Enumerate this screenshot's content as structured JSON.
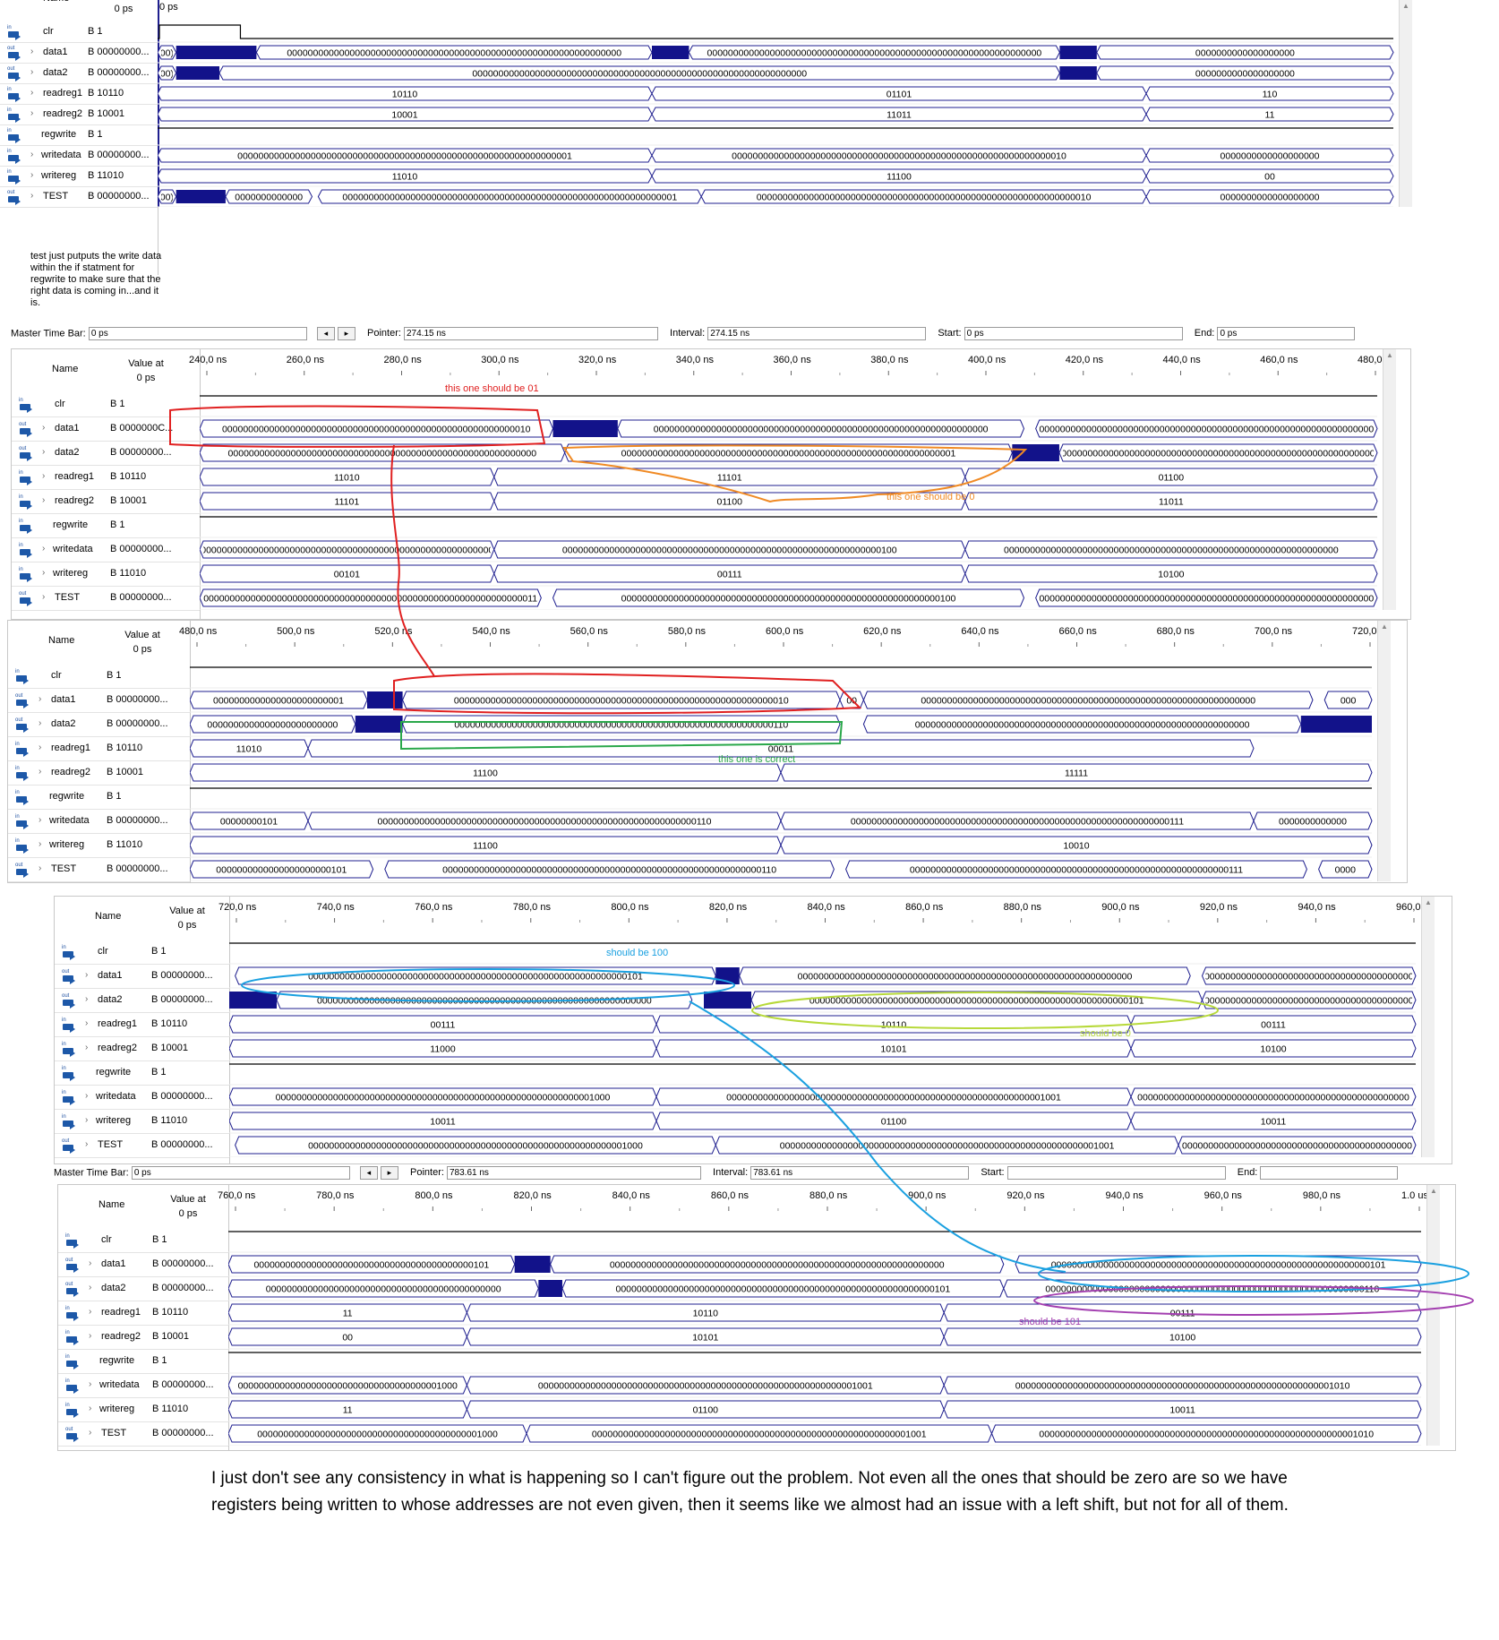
{
  "signals": [
    {
      "name": "clr",
      "icon": "input-pin-icon",
      "expandable": false
    },
    {
      "name": "data1",
      "icon": "output-pin-icon",
      "expandable": true
    },
    {
      "name": "data2",
      "icon": "output-pin-icon",
      "expandable": true
    },
    {
      "name": "readreg1",
      "icon": "input-pin-icon",
      "expandable": true
    },
    {
      "name": "readreg2",
      "icon": "input-pin-icon",
      "expandable": true
    },
    {
      "name": "regwrite",
      "icon": "input-pin-icon",
      "expandable": false
    },
    {
      "name": "writedata",
      "icon": "input-pin-icon",
      "expandable": true
    },
    {
      "name": "writereg",
      "icon": "input-pin-icon",
      "expandable": true
    },
    {
      "name": "TEST",
      "icon": "output-pin-icon",
      "expandable": true
    }
  ],
  "values": [
    "B 1",
    "B 00000000...",
    "B 00000000...",
    "B 10110",
    "B 10001",
    "B 1",
    "B 00000000...",
    "B 11010",
    "B 00000000..."
  ],
  "values_p1": [
    "B 1",
    "B 00000000...",
    "B 00000000...",
    "B 10110",
    "B 10001",
    "B 1",
    "B 00000000...",
    "B 11010",
    "B 00000000..."
  ],
  "values_p2": [
    "B 1",
    "B 0000000C...",
    "B 00000000...",
    "B 10110",
    "B 10001",
    "B 1",
    "B 00000000...",
    "B 11010",
    "B 00000000..."
  ],
  "headers": {
    "name": "Name",
    "value_at": "Value at",
    "zero_ps": "0 ps"
  },
  "panel1": {
    "time_label": "0 ps",
    "note": "test just putputs the write data within the if statment for regwrite to make sure that the right data is coming in...and it is.",
    "rows": {
      "data1": [
        "00)",
        "0000000000000000000000000000000000000000000000000000000000000000",
        "0000000000000000000000000000000000000000000000000000000000000000",
        "0000000000000000000"
      ],
      "data2": [
        "00)",
        "0000000000000000000000000000000000000000000000000000000000000000",
        "0000000000000000000"
      ],
      "readreg1": [
        "10110",
        "01101",
        "110"
      ],
      "readreg2": [
        "10001",
        "11011",
        "11"
      ],
      "writedata": [
        "0000000000000000000000000000000000000000000000000000000000000001",
        "0000000000000000000000000000000000000000000000000000000000000010",
        "0000000000000000000"
      ],
      "writereg": [
        "11010",
        "11100",
        "00"
      ],
      "TEST": [
        "00)",
        "0000000000000",
        "0000000000000000000000000000000000000000000000000000000000000001",
        "0000000000000000000000000000000000000000000000000000000000000010",
        "0000000000000000000"
      ]
    }
  },
  "timebar": {
    "master_time_bar_label": "Master Time Bar:",
    "master_time_bar_value": "0 ps",
    "pointer_label": "Pointer:",
    "interval_label": "Interval:",
    "start_label": "Start:",
    "end_label": "End:",
    "pointer_p2": "274.15 ns",
    "interval_p2": "274.15 ns",
    "start_p2": "0 ps",
    "end_p2": "0 ps",
    "pointer_p5": "783.61 ns",
    "interval_p5": "783.61 ns"
  },
  "panel2": {
    "ticks": [
      "240,0 ns",
      "260,0 ns",
      "280,0 ns",
      "300,0 ns",
      "320,0 ns",
      "340,0 ns",
      "360,0 ns",
      "380,0 ns",
      "400,0 ns",
      "420,0 ns",
      "440,0 ns",
      "460,0 ns",
      "480,0 ns"
    ],
    "rows": {
      "data1": [
        "00000000000000000000000000000000000000000000000000000000010",
        "0000000000000000000000000000000000000000000000000000000000000000",
        "0000000000000000000000000000000000000000000000000000000000000000"
      ],
      "data2": [
        "00000000000000000000000000000000000000000000000000000000000",
        "0000000000000000000000000000000000000000000000000000000000000001",
        "0000000000000000000000000000000000000000000000000000000000000000"
      ],
      "readreg1": [
        "11010",
        "11101",
        "01100"
      ],
      "readreg2": [
        "11101",
        "01100",
        "11011"
      ],
      "writedata": [
        "0000000000000000000000000000000000000000000000000000000000000011",
        "0000000000000000000000000000000000000000000000000000000000000100",
        "0000000000000000000000000000000000000000000000000000000000000000"
      ],
      "writereg": [
        "00101",
        "00111",
        "10100"
      ],
      "TEST": [
        "0000000000000000000000000000000000000000000000000000000000000011",
        "0000000000000000000000000000000000000000000000000000000000000100",
        "0000000000000000000000000000000000000000000000000000000000000000"
      ]
    },
    "annot_red": "this one should be 01",
    "annot_orange": "this one should be 0"
  },
  "panel3": {
    "ticks": [
      "480,0 ns",
      "500,0 ns",
      "520,0 ns",
      "540,0 ns",
      "560,0 ns",
      "580,0 ns",
      "600,0 ns",
      "620,0 ns",
      "640,0 ns",
      "660,0 ns",
      "680,0 ns",
      "700,0 ns",
      "720,0 ns"
    ],
    "rows": {
      "data1": [
        "0000000000000000000000001",
        "0000000000000000000000000000000000000000000000000000000000000010",
        "00",
        "0000000000000000000000000000000000000000000000000000000000000000",
        "000"
      ],
      "data2": [
        "0000000000000000000000000",
        "0000000000000000000000000000000000000000000000000000000000000110",
        "0000000000000000000000000000000000000000000000000000000000000000"
      ],
      "readreg1": [
        "11010",
        "00011"
      ],
      "readreg2": [
        "11100",
        "11111"
      ],
      "writedata": [
        "00000000101",
        "0000000000000000000000000000000000000000000000000000000000000110",
        "0000000000000000000000000000000000000000000000000000000000000111",
        "0000000000000"
      ],
      "writereg": [
        "11100",
        "10010"
      ],
      "TEST": [
        "0000000000000000000000101",
        "0000000000000000000000000000000000000000000000000000000000000110",
        "0000000000000000000000000000000000000000000000000000000000000111",
        "0000"
      ]
    },
    "annot_green": "this one is correct"
  },
  "panel4": {
    "ticks": [
      "720,0 ns",
      "740,0 ns",
      "760,0 ns",
      "780,0 ns",
      "800,0 ns",
      "820,0 ns",
      "840,0 ns",
      "860,0 ns",
      "880,0 ns",
      "900,0 ns",
      "920,0 ns",
      "940,0 ns",
      "960,0"
    ],
    "rows": {
      "data1": [
        "0000000000000000000000000000000000000000000000000000000000000101",
        "0000000000000000000000000000000000000000000000000000000000000000",
        "0000000000000000000000000000000000000000000000000000"
      ],
      "data2": [
        "0000000000000000000000000000000000000000000000000000000000000000",
        "0000000000000000000000000000000000000000000000000000000000000101",
        "0000000000000000000000000000000000000000000000000000"
      ],
      "readreg1": [
        "00111",
        "10110",
        "00111"
      ],
      "readreg2": [
        "11000",
        "10101",
        "10100"
      ],
      "writedata": [
        "0000000000000000000000000000000000000000000000000000000000001000",
        "0000000000000000000000000000000000000000000000000000000000001001",
        "0000000000000000000000000000000000000000000000000000"
      ],
      "writereg": [
        "10011",
        "01100",
        "10011"
      ],
      "TEST": [
        "0000000000000000000000000000000000000000000000000000000000001000",
        "0000000000000000000000000000000000000000000000000000000000001001",
        "0000000000000000000000000000000000000000000000000000"
      ]
    },
    "annot_blue": "should be 100",
    "annot_yellow": "should be 0"
  },
  "panel5": {
    "ticks": [
      "760,0 ns",
      "780,0 ns",
      "800,0 ns",
      "820,0 ns",
      "840,0 ns",
      "860,0 ns",
      "880,0 ns",
      "900,0 ns",
      "920,0 ns",
      "940,0 ns",
      "960,0 ns",
      "980,0 ns",
      "1.0 us"
    ],
    "rows": {
      "data1": [
        "000000000000000000000000000000000000000000101",
        "0000000000000000000000000000000000000000000000000000000000000000",
        "0000000000000000000000000000000000000000000000000000000000000101"
      ],
      "data2": [
        "000000000000000000000000000000000000000000000",
        "0000000000000000000000000000000000000000000000000000000000000101",
        "0000000000000000000000000000000000000000000000000000000000000110"
      ],
      "readreg1": [
        "11",
        "10110",
        "00111"
      ],
      "readreg2": [
        "00",
        "10101",
        "10100"
      ],
      "writedata": [
        "000000000000000000000000000000000000001000",
        "0000000000000000000000000000000000000000000000000000000000001001",
        "0000000000000000000000000000000000000000000000000000000000001010"
      ],
      "writereg": [
        "11",
        "01100",
        "10011"
      ],
      "TEST": [
        "0000000000000000000000000000000000000000001000",
        "0000000000000000000000000000000000000000000000000000000000001001",
        "0000000000000000000000000000000000000000000000000000000000001010"
      ]
    },
    "annot_purple": "should be 101"
  },
  "comment": "I just don't see any consistency in what is happening so I can't figure out the problem. Not even all the ones that should be zero are so we have registers being written to whose addresses are not even given, then it seems like we almost had an issue with a left shift, but not for all of them.",
  "colors": {
    "wave": "#1f1f8f",
    "red": "#e02020",
    "orange": "#f08a24",
    "green": "#2aa84a",
    "blue": "#1aa0e0",
    "yellow": "#b7d93a",
    "purple": "#a33fb0"
  }
}
